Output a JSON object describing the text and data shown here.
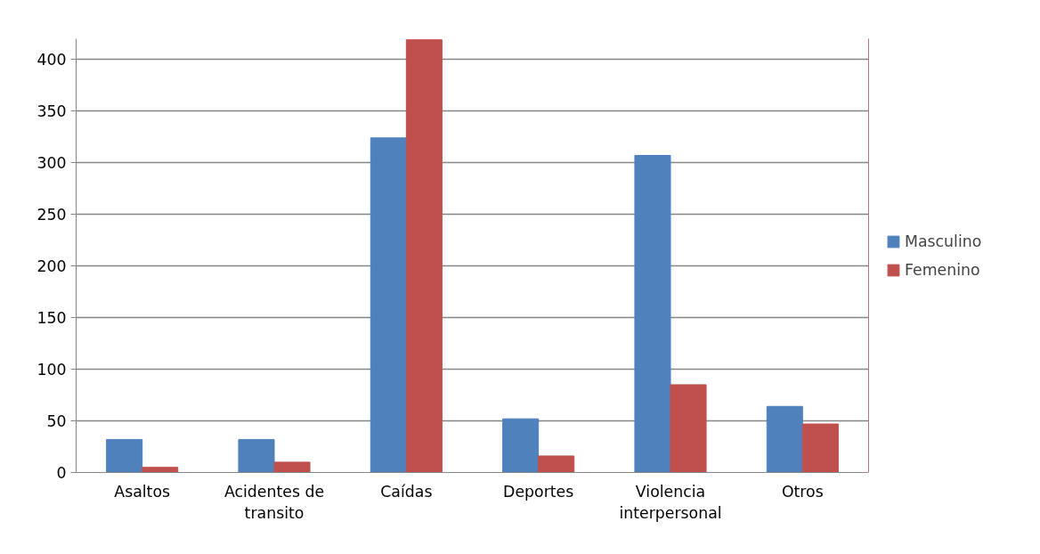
{
  "chart_data": {
    "type": "bar",
    "categories": [
      "Asaltos",
      "Acidentes de transito",
      "Caídas",
      "Deportes",
      "Violencia interpersonal",
      "Otros"
    ],
    "series": [
      {
        "name": "Masculino",
        "color": "#4f81bd",
        "values": [
          32,
          32,
          324,
          52,
          307,
          64
        ]
      },
      {
        "name": "Femenino",
        "color": "#c0504d",
        "values": [
          5,
          10,
          419,
          16,
          85,
          47
        ]
      }
    ],
    "ylim": [
      0,
      420
    ],
    "yticks": [
      0,
      50,
      100,
      150,
      200,
      250,
      300,
      350,
      400
    ],
    "grid": "y",
    "legend": "right"
  }
}
